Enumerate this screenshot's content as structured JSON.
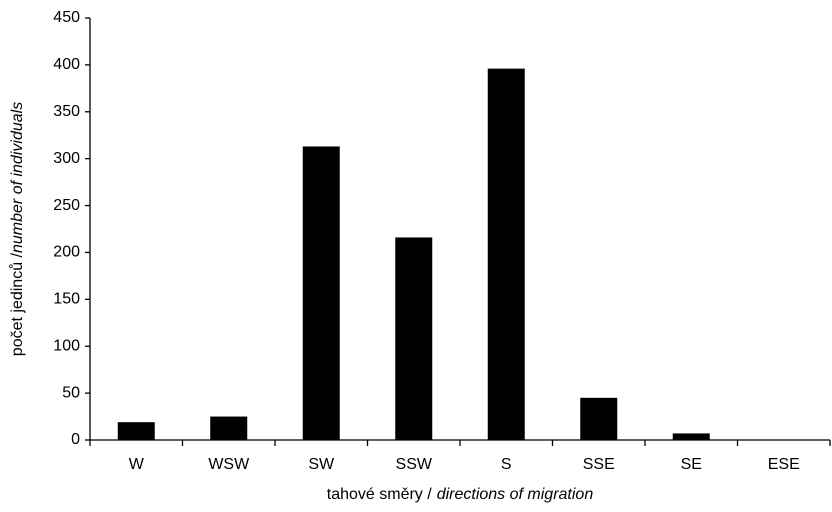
{
  "chart_data": {
    "type": "bar",
    "y_label": [
      "počet jedinců /",
      "number of individuals"
    ],
    "x_label": [
      "tahové směry /",
      "directions of migration"
    ],
    "categories": [
      "W",
      "WSW",
      "SW",
      "SSW",
      "S",
      "SSE",
      "SE",
      "ESE"
    ],
    "values": [
      19,
      25,
      313,
      216,
      396,
      45,
      7,
      0
    ],
    "color": "#000000",
    "ylim": [
      0,
      450
    ],
    "yticks": [
      0,
      50,
      100,
      150,
      200,
      250,
      300,
      350,
      400,
      450
    ],
    "grid": false
  }
}
